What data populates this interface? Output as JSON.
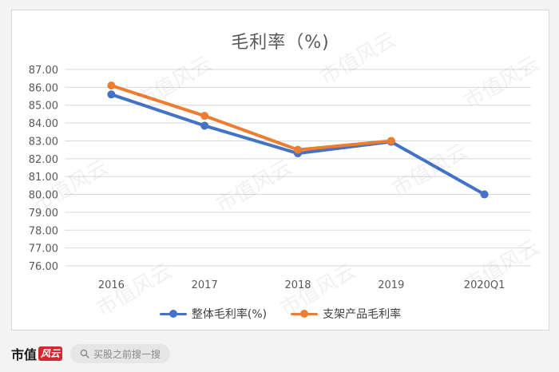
{
  "chart_data": {
    "type": "line",
    "title": "毛利率（%)",
    "categories": [
      "2016",
      "2017",
      "2018",
      "2019",
      "2020Q1"
    ],
    "series": [
      {
        "name": "整体毛利率(%)",
        "values": [
          85.6,
          83.85,
          82.3,
          82.95,
          80.0
        ],
        "color": "#4472c4"
      },
      {
        "name": "支架产品毛利率",
        "values": [
          86.1,
          84.4,
          82.5,
          83.0,
          null
        ],
        "color": "#ed7d31"
      }
    ],
    "ylim": [
      76.0,
      87.0
    ],
    "yticks": [
      "76.00",
      "77.00",
      "78.00",
      "79.00",
      "80.00",
      "81.00",
      "82.00",
      "83.00",
      "84.00",
      "85.00",
      "86.00",
      "87.00"
    ],
    "grid": true,
    "legend_position": "bottom"
  },
  "watermark": "市值风云",
  "footer": {
    "brand": "市值",
    "brand_mark": "风云",
    "search_placeholder": "买股之前搜一搜"
  }
}
